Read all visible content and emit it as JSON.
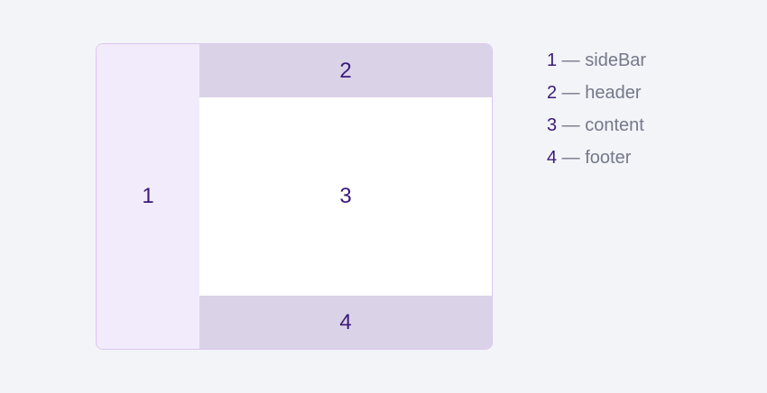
{
  "regions": {
    "sidebar": "1",
    "header": "2",
    "content": "3",
    "footer": "4"
  },
  "legend": [
    {
      "number": "1",
      "separator": " — ",
      "label": "sideBar"
    },
    {
      "number": "2",
      "separator": " — ",
      "label": "header"
    },
    {
      "number": "3",
      "separator": " — ",
      "label": "content"
    },
    {
      "number": "4",
      "separator": " — ",
      "label": "footer"
    }
  ],
  "colors": {
    "background": "#f2f4f8",
    "frame_border": "#dcc6f0",
    "sidebar_fill": "#f2ebfb",
    "header_footer_fill": "#dad2e7",
    "content_fill": "#ffffff",
    "number_text": "#3c1a78",
    "legend_text": "#757889"
  }
}
